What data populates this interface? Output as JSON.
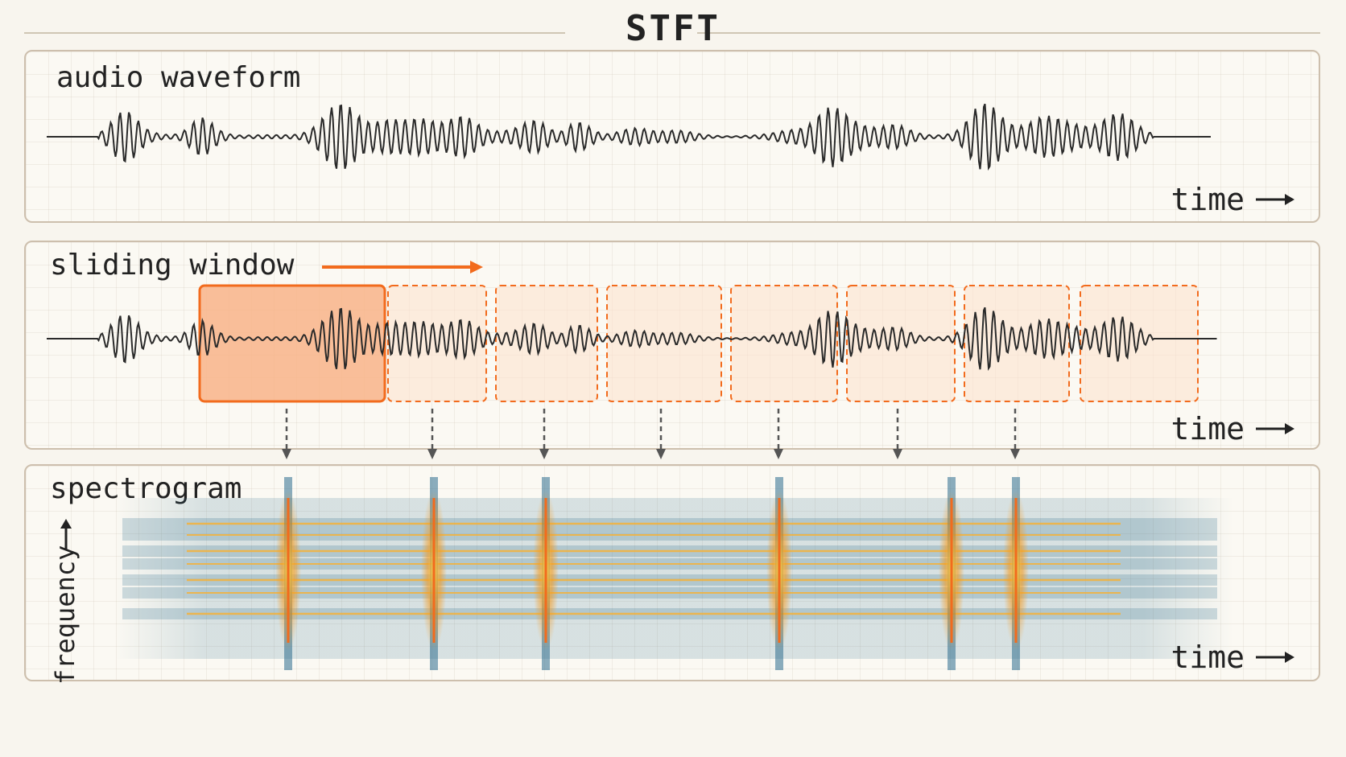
{
  "title": "STFT",
  "panels": {
    "waveform": {
      "label": "audio waveform",
      "time_label": "time"
    },
    "window": {
      "label": "sliding window",
      "time_label": "time"
    },
    "spectrogram": {
      "label": "spectrogram",
      "y_label": "frequency",
      "time_label": "time"
    }
  },
  "colors": {
    "background": "#f8f5ee",
    "panel_border": "#cdbfad",
    "waveform": "#2a2a2a",
    "accent": "#f26b1d",
    "window_fill": "#fbd2b3",
    "spectro_blue": "#2e6e8e",
    "spectro_orange": "#f59a1e"
  },
  "icons": {
    "direction_arrow": "arrow-right-icon",
    "down_arrows": "arrow-down-icon"
  }
}
